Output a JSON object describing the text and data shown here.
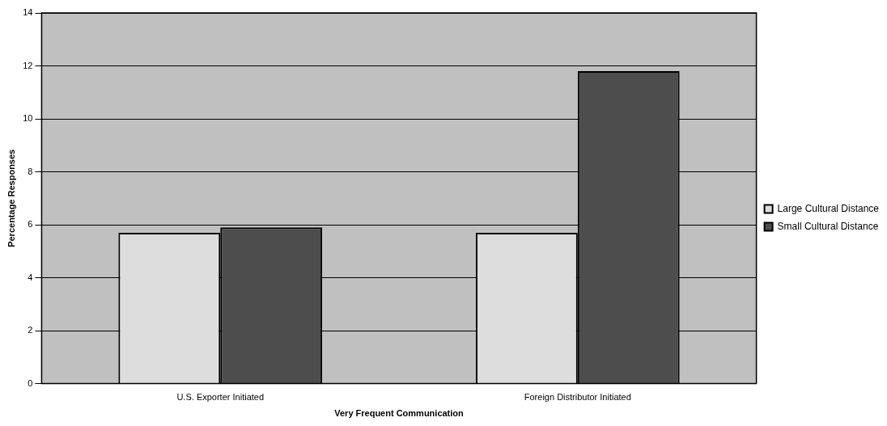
{
  "chart_data": {
    "type": "bar",
    "xlabel": "Very Frequent Communication",
    "ylabel": "Percentage Responses",
    "categories": [
      "U.S. Exporter Initiated",
      "Foreign Distributor Initiated"
    ],
    "series": [
      {
        "name": "Large Cultural Distance",
        "color": "#dddddd",
        "values": [
          5.7,
          5.7
        ]
      },
      {
        "name": "Small Cultural Distance",
        "color": "#4d4d4d",
        "values": [
          5.9,
          11.8
        ]
      }
    ],
    "ylim": [
      0,
      14
    ],
    "yticks": [
      0,
      2,
      4,
      6,
      8,
      10,
      12,
      14
    ],
    "grid": "y",
    "legend": "right"
  }
}
